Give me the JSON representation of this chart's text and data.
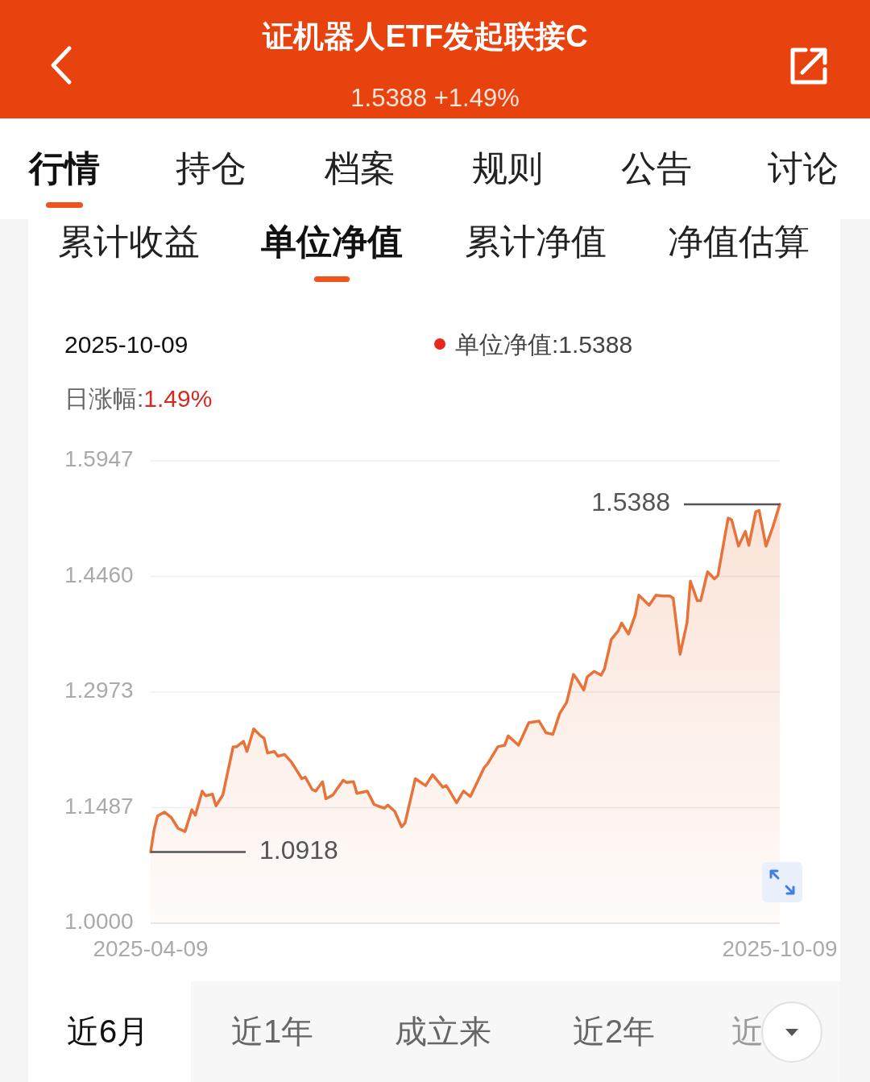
{
  "chart_data": {
    "type": "area",
    "title": "证机器人ETF发起联接C",
    "subtitle": "1.5388 +1.49%",
    "annotations": [
      "行情",
      "持仓",
      "档案",
      "规则",
      "公告",
      "讨论",
      "累计收益",
      "单位净值",
      "累计净值",
      "净值估算",
      "2025-10-09",
      "单位净值:1.5388",
      "日涨幅:1.49%",
      "1.0918",
      "1.5388",
      "近6月",
      "近1年",
      "成立来",
      "近2年",
      "近"
    ],
    "x": [
      "2025-04-09",
      "2025-04-10",
      "2025-04-11",
      "2025-04-13",
      "2025-04-15",
      "2025-04-17",
      "2025-04-19",
      "2025-04-21",
      "2025-04-22",
      "2025-04-24",
      "2025-04-25",
      "2025-04-27",
      "2025-04-28",
      "2025-04-30",
      "2025-05-03",
      "2025-05-04",
      "2025-05-06",
      "2025-05-07",
      "2025-05-09",
      "2025-05-11",
      "2025-05-12",
      "2025-05-13",
      "2025-05-15",
      "2025-05-16",
      "2025-05-18",
      "2025-05-20",
      "2025-05-23",
      "2025-05-24",
      "2025-05-26",
      "2025-05-27",
      "2025-05-29",
      "2025-05-30",
      "2025-06-01",
      "2025-06-04",
      "2025-06-05",
      "2025-06-07",
      "2025-06-08",
      "2025-06-11",
      "2025-06-13",
      "2025-06-14",
      "2025-06-16",
      "2025-06-17",
      "2025-06-19",
      "2025-06-21",
      "2025-06-22",
      "2025-06-25",
      "2025-06-28",
      "2025-06-30",
      "2025-07-03",
      "2025-07-04",
      "2025-07-07",
      "2025-07-09",
      "2025-07-11",
      "2025-07-15",
      "2025-07-16",
      "2025-07-19",
      "2025-07-21",
      "2025-07-22",
      "2025-07-25",
      "2025-07-28",
      "2025-07-31",
      "2025-08-02",
      "2025-08-04",
      "2025-08-06",
      "2025-08-08",
      "2025-08-10",
      "2025-08-11",
      "2025-08-13",
      "2025-08-14",
      "2025-08-16",
      "2025-08-18",
      "2025-08-19",
      "2025-08-21",
      "2025-08-23",
      "2025-08-24",
      "2025-08-26",
      "2025-08-28",
      "2025-08-29",
      "2025-09-01",
      "2025-09-03",
      "2025-09-05",
      "2025-09-07",
      "2025-09-08",
      "2025-09-10",
      "2025-09-12",
      "2025-09-13",
      "2025-09-15",
      "2025-09-16",
      "2025-09-18",
      "2025-09-20",
      "2025-09-21",
      "2025-09-23",
      "2025-09-24",
      "2025-09-25",
      "2025-09-27",
      "2025-09-29",
      "2025-09-30",
      "2025-10-02",
      "2025-10-03",
      "2025-10-05",
      "2025-10-07",
      "2025-10-09"
    ],
    "series": [
      {
        "color": "#e8733a",
        "values": [
          1.0918,
          1.12,
          1.138,
          1.143,
          1.136,
          1.122,
          1.118,
          1.146,
          1.139,
          1.17,
          1.164,
          1.166,
          1.151,
          1.165,
          1.227,
          1.227,
          1.234,
          1.221,
          1.25,
          1.241,
          1.238,
          1.219,
          1.221,
          1.215,
          1.217,
          1.207,
          1.186,
          1.188,
          1.172,
          1.17,
          1.182,
          1.16,
          1.165,
          1.184,
          1.181,
          1.182,
          1.167,
          1.17,
          1.153,
          1.151,
          1.148,
          1.152,
          1.144,
          1.124,
          1.129,
          1.186,
          1.177,
          1.191,
          1.175,
          1.177,
          1.155,
          1.17,
          1.163,
          1.2,
          1.205,
          1.227,
          1.229,
          1.241,
          1.229,
          1.258,
          1.26,
          1.245,
          1.243,
          1.27,
          1.284,
          1.32,
          1.314,
          1.3,
          1.317,
          1.324,
          1.319,
          1.327,
          1.365,
          1.376,
          1.386,
          1.372,
          1.397,
          1.422,
          1.409,
          1.422,
          1.421,
          1.421,
          1.418,
          1.346,
          1.386,
          1.44,
          1.415,
          1.415,
          1.452,
          1.443,
          1.447,
          1.497,
          1.521,
          1.519,
          1.485,
          1.504,
          1.486,
          1.529,
          1.531,
          1.485,
          1.51,
          1.5388
        ]
      }
    ],
    "xlim": [
      "2025-04-09",
      "2025-10-09"
    ],
    "xticks": [
      "2025-04-09",
      "2025-10-09"
    ],
    "ylim": [
      1.0,
      1.5947
    ],
    "yticks": [
      {
        "value": 1.0,
        "label": "1.0000"
      },
      1.1487,
      1.2973,
      {
        "value": 1.446,
        "label": "1.4460"
      },
      1.5947
    ],
    "grid": "y"
  }
}
